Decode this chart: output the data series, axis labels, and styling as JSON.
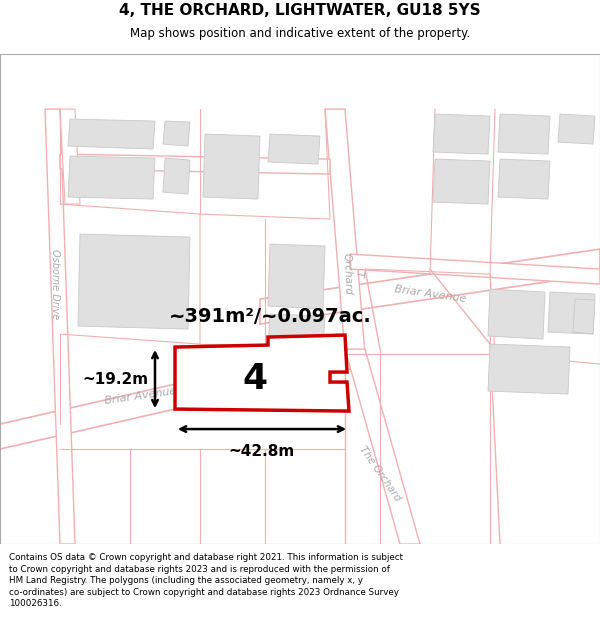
{
  "title": "4, THE ORCHARD, LIGHTWATER, GU18 5YS",
  "subtitle": "Map shows position and indicative extent of the property.",
  "footer": "Contains OS data © Crown copyright and database right 2021. This information is subject to Crown copyright and database rights 2023 and is reproduced with the permission of HM Land Registry. The polygons (including the associated geometry, namely x, y co-ordinates) are subject to Crown copyright and database rights 2023 Ordnance Survey 100026316.",
  "map_bg": "#ffffff",
  "road_color": "#f0b0b0",
  "building_fill": "#e0e0e0",
  "building_edge": "#c8c8c8",
  "plot_color": "#cc0000",
  "plot_fill": "#ffffff",
  "area_text": "~391m²/~0.097ac.",
  "width_label": "~42.8m",
  "height_label": "~19.2m",
  "plot_number": "4",
  "label_color": "#aaaaaa"
}
